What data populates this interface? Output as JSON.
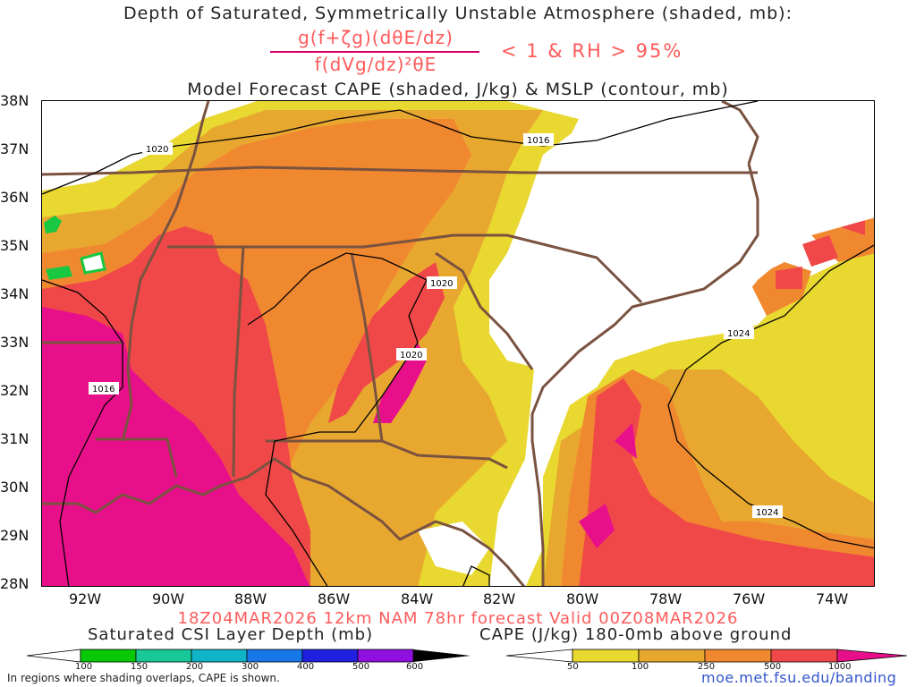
{
  "header": {
    "line1": "Depth of Saturated, Symmetrically Unstable Atmosphere (shaded, mb):",
    "fraction_numerator": "g(f+ζg)(dθE/dz)",
    "fraction_denominator": "f(dVg/dz)²θE",
    "criterion": "< 1 & RH > 95%",
    "line3": "Model Forecast CAPE (shaded, J/kg) & MSLP (contour, mb)"
  },
  "map": {
    "lat_labels": [
      "38N",
      "37N",
      "36N",
      "35N",
      "34N",
      "33N",
      "32N",
      "31N",
      "30N",
      "29N",
      "28N"
    ],
    "lon_labels": [
      "92W",
      "90W",
      "88W",
      "86W",
      "84W",
      "82W",
      "80W",
      "78W",
      "76W",
      "74W"
    ],
    "isobar_labels": [
      "1020",
      "1016",
      "1020",
      "1020",
      "1016",
      "1024",
      "1024"
    ],
    "colors": {
      "cape_50": "#e8d830",
      "cape_100": "#e8a830",
      "cape_250": "#f08830",
      "cape_500": "#f04848",
      "cape_1000": "#e8108a",
      "land_border": "#7a5240",
      "isobar": "#000000",
      "csi_green": "#18c840"
    }
  },
  "footer": {
    "valid_line": "18Z04MAR2026 12km NAM 78hr forecast Valid 00Z08MAR2026",
    "csi_colorbar_title": "Saturated CSI Layer Depth (mb)",
    "cape_colorbar_title": "CAPE (J/kg) 180-0mb above ground",
    "csi_ticks": [
      "100",
      "150",
      "200",
      "300",
      "400",
      "500",
      "600"
    ],
    "cape_ticks": [
      "50",
      "100",
      "250",
      "500",
      "1000"
    ],
    "csi_colors": [
      "#ffffff",
      "#08c808",
      "#18c898",
      "#10b4c8",
      "#1878e8",
      "#2020e0",
      "#9010e0",
      "#000000"
    ],
    "cape_colors": [
      "#ffffff",
      "#e8d830",
      "#e8a830",
      "#f08830",
      "#f04848",
      "#e8108a"
    ],
    "footnote": "In regions where shading overlaps, CAPE is shown.",
    "url": "moe.met.fsu.edu/banding"
  }
}
